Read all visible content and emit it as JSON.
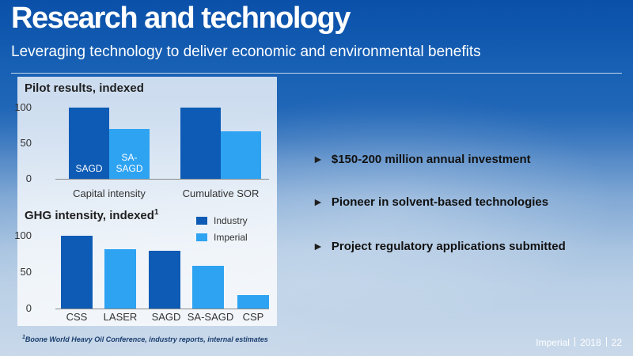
{
  "header": {
    "title": "Research and technology",
    "subtitle": "Leveraging technology to deliver economic and environmental benefits"
  },
  "colors": {
    "industry": "#0d5bb5",
    "imperial": "#2ea3f2"
  },
  "chart_data": [
    {
      "type": "bar",
      "title": "Pilot results, indexed",
      "categories": [
        "Capital intensity",
        "Cumulative SOR"
      ],
      "series": [
        {
          "values": [
            100,
            100
          ],
          "bar_labels": [
            "SAGD",
            ""
          ]
        },
        {
          "values": [
            70,
            67
          ],
          "bar_labels": [
            "SA-\nSAGD",
            ""
          ]
        }
      ],
      "yticks": [
        "0",
        "50",
        "100"
      ],
      "ylim": [
        0,
        100
      ]
    },
    {
      "type": "bar",
      "title": "GHG intensity, indexed",
      "title_sup": "1",
      "categories": [
        "CSS",
        "LASER",
        "SAGD",
        "SA-SAGD",
        "CSP"
      ],
      "series": [
        {
          "name": "Industry",
          "values": [
            100,
            null,
            79,
            null,
            null
          ]
        },
        {
          "name": "Imperial",
          "values": [
            null,
            82,
            null,
            59,
            18
          ]
        }
      ],
      "yticks": [
        "0",
        "50",
        "100"
      ],
      "ylim": [
        0,
        100
      ],
      "legend_position": "top-right"
    }
  ],
  "bullets": [
    "$150-200 million annual investment",
    "Pioneer in solvent-based technologies",
    "Project regulatory applications submitted"
  ],
  "footnote": {
    "marker": "1",
    "text": "Boone World Heavy Oil Conference, industry reports, internal estimates"
  },
  "footer": {
    "company": "Imperial",
    "year": "2018",
    "page": "22"
  }
}
